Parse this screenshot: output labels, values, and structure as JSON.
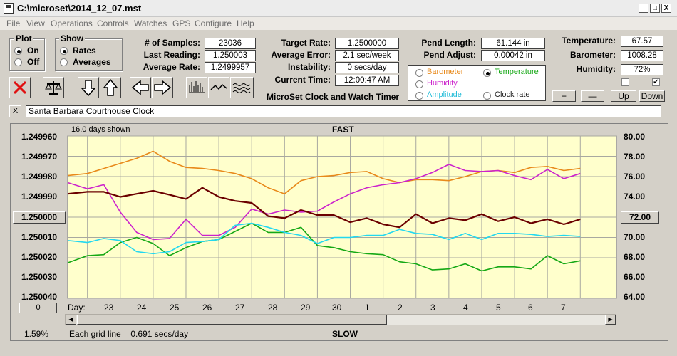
{
  "window": {
    "title": "C:\\microset\\2014_12_07.mst",
    "min_glyph": "_",
    "max_glyph": "□",
    "close_glyph": "X"
  },
  "menu": [
    "File",
    "View",
    "Operations",
    "Controls",
    "Watches",
    "GPS",
    "Configure",
    "Help"
  ],
  "plot_group": {
    "title": "Plot",
    "on": "On",
    "off": "Off",
    "selected": "On"
  },
  "show_group": {
    "title": "Show",
    "rates": "Rates",
    "averages": "Averages",
    "selected": "Rates"
  },
  "stats": {
    "samples_label": "# of Samples:",
    "samples": "23036",
    "last_label": "Last Reading:",
    "last": "1.250003",
    "avg_label": "Average Rate:",
    "avg": "1.2499957",
    "target_label": "Target Rate:",
    "target": "1.2500000",
    "error_label": "Average Error:",
    "error": "2.1 sec/week",
    "instab_label": "Instability:",
    "instab": "0 secs/day",
    "time_label": "Current Time:",
    "time": "12:00:47 AM",
    "pend_len_label": "Pend Length:",
    "pend_len": "61.144 in",
    "pend_adj_label": "Pend Adjust:",
    "pend_adj": "0.00042 in",
    "temp_label": "Temperature:",
    "temp": "67.57",
    "baro_label": "Barometer:",
    "baro": "1008.28",
    "hum_label": "Humidity:",
    "hum": "72%"
  },
  "app_caption": "MicroSet Clock and Watch Timer",
  "sensor_select": {
    "barometer": "Barometer",
    "temperature": "Temperature",
    "humidity": "Humidity",
    "amplitude": "Amplitude",
    "clock_rate": "Clock rate",
    "selected": "Temperature"
  },
  "adjust_buttons": {
    "plus": "+",
    "minus": "—",
    "up": "Up",
    "down": "Down"
  },
  "clock_name": {
    "clear": "X",
    "value": "Santa Barbara Courthouse Clock"
  },
  "graph": {
    "days_shown": "16.0 days shown",
    "fast": "FAST",
    "slow": "SLOW",
    "grid_note": "Each grid line = 0.691 secs/day",
    "percent": "1.59%",
    "day_label": "Day:",
    "center_left": "1.250000",
    "center_right": "72.00",
    "offset_value": "0"
  },
  "colors": {
    "plot_bg": "#ffffcc",
    "barometer": "#e8891a",
    "temperature": "#15a815",
    "humidity": "#cc22cc",
    "amplitude": "#22d8f0",
    "rate": "#6b0000"
  },
  "chart_data": {
    "type": "line",
    "x_label": "Day",
    "x_ticks": [
      "23",
      "24",
      "25",
      "26",
      "27",
      "28",
      "29",
      "30",
      "1",
      "2",
      "3",
      "4",
      "5",
      "6",
      "7"
    ],
    "y_left_ticks": [
      "1.249960",
      "1.249970",
      "1.249980",
      "1.249990",
      "1.250000",
      "1.250010",
      "1.250020",
      "1.250030",
      "1.250040"
    ],
    "y_right_ticks": [
      "80.00",
      "78.00",
      "76.00",
      "74.00",
      "72.00",
      "70.00",
      "68.00",
      "66.00",
      "64.00"
    ],
    "x": [
      22.4,
      23.0,
      23.5,
      24.0,
      24.5,
      25.0,
      25.5,
      26.0,
      26.5,
      27.0,
      27.5,
      28.0,
      28.5,
      29.0,
      29.5,
      30.0,
      30.5,
      31.0,
      31.5,
      32.0,
      32.5,
      33.0,
      33.5,
      34.0,
      34.5,
      35.0,
      35.5,
      36.0,
      36.5,
      37.0,
      37.5,
      38.0
    ],
    "series": [
      {
        "name": "Barometer",
        "values": [
          76.1,
          76.3,
          76.8,
          77.3,
          77.8,
          78.5,
          77.5,
          76.9,
          76.8,
          76.6,
          76.3,
          75.8,
          74.9,
          74.3,
          75.6,
          76.0,
          76.1,
          76.4,
          76.5,
          75.8,
          75.4,
          75.7,
          75.7,
          75.6,
          76.0,
          76.5,
          76.6,
          76.4,
          76.9,
          77.0,
          76.6,
          76.8
        ]
      },
      {
        "name": "Humidity",
        "values": [
          75.4,
          74.8,
          75.2,
          72.5,
          70.5,
          69.8,
          69.9,
          71.8,
          70.2,
          70.2,
          71.0,
          72.8,
          72.3,
          72.7,
          72.5,
          72.6,
          73.5,
          74.3,
          74.9,
          75.2,
          75.4,
          75.8,
          76.4,
          77.2,
          76.6,
          76.5,
          76.6,
          76.1,
          75.7,
          76.7,
          75.8,
          76.3
        ]
      },
      {
        "name": "Temperature",
        "values": [
          67.5,
          68.2,
          68.3,
          69.5,
          70.0,
          69.4,
          68.2,
          69.0,
          69.6,
          69.8,
          70.6,
          71.4,
          70.5,
          70.5,
          71.0,
          69.2,
          69.0,
          68.6,
          68.4,
          68.3,
          67.6,
          67.4,
          66.8,
          66.9,
          67.4,
          66.7,
          67.1,
          67.1,
          66.9,
          68.2,
          67.4,
          67.7
        ]
      },
      {
        "name": "Amplitude",
        "values": [
          69.7,
          69.5,
          69.9,
          69.7,
          68.6,
          68.4,
          68.6,
          69.5,
          69.6,
          69.8,
          71.2,
          71.4,
          71.0,
          70.5,
          70.2,
          69.4,
          70.0,
          70.0,
          70.2,
          70.2,
          70.8,
          70.4,
          70.3,
          69.8,
          70.4,
          69.8,
          70.4,
          70.4,
          70.3,
          70.1,
          70.2,
          70.1
        ]
      },
      {
        "name": "Rate",
        "values": [
          74.3,
          74.5,
          74.5,
          74.0,
          74.3,
          74.6,
          74.2,
          73.8,
          74.9,
          74.0,
          73.6,
          73.4,
          72.1,
          71.9,
          72.7,
          72.2,
          72.2,
          71.5,
          71.9,
          71.3,
          71.0,
          72.3,
          71.4,
          71.9,
          71.7,
          72.3,
          71.6,
          72.0,
          71.4,
          71.8,
          71.3,
          71.8
        ]
      }
    ],
    "y_range": [
      64,
      80
    ]
  }
}
